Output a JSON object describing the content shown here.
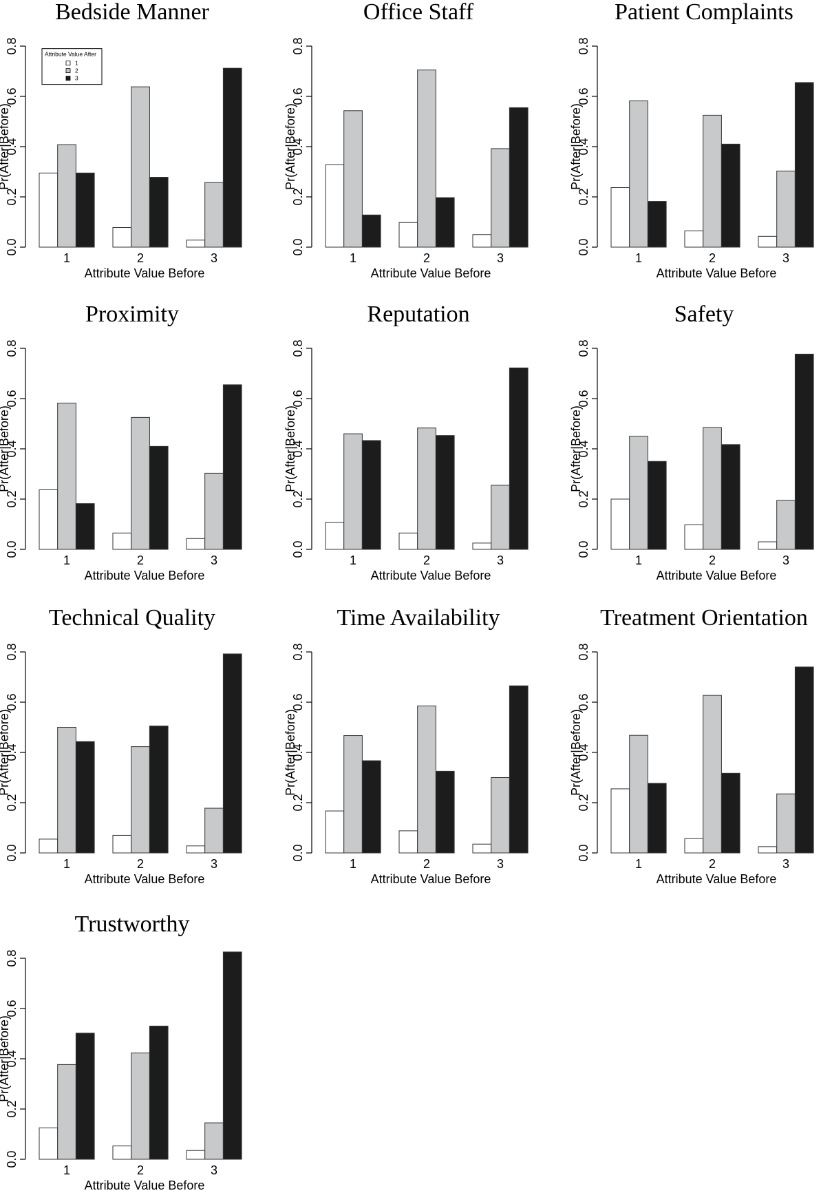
{
  "x_label": "Attribute Value Before",
  "y_label": "Pr(After|Before)",
  "legend": {
    "title": "Attribute Value After",
    "entries": [
      "1",
      "2",
      "3"
    ]
  },
  "colors": {
    "after_1": "#ffffff",
    "after_2": "#c8c9cb",
    "after_3": "#1c1c1c",
    "outline": "#333333"
  },
  "chart_data": [
    {
      "type": "bar",
      "title": "Bedside Manner",
      "xlabel": "Attribute Value Before",
      "ylabel": "Pr(After|Before)",
      "categories": [
        "1",
        "2",
        "3"
      ],
      "ylim": [
        0,
        0.8
      ],
      "yticks": [
        "0.0",
        "0.2",
        "0.4",
        "0.6",
        "0.8"
      ],
      "legend": "top-left",
      "series": [
        {
          "name": "1",
          "values": [
            0.295,
            0.078,
            0.028
          ]
        },
        {
          "name": "2",
          "values": [
            0.408,
            0.638,
            0.257
          ]
        },
        {
          "name": "3",
          "values": [
            0.295,
            0.278,
            0.712
          ]
        }
      ]
    },
    {
      "type": "bar",
      "title": "Office Staff",
      "xlabel": "Attribute Value Before",
      "ylabel": "Pr(After|Before)",
      "categories": [
        "1",
        "2",
        "3"
      ],
      "ylim": [
        0,
        0.8
      ],
      "yticks": [
        "0.0",
        "0.2",
        "0.4",
        "0.6",
        "0.8"
      ],
      "series": [
        {
          "name": "1",
          "values": [
            0.328,
            0.098,
            0.05
          ]
        },
        {
          "name": "2",
          "values": [
            0.543,
            0.705,
            0.392
          ]
        },
        {
          "name": "3",
          "values": [
            0.128,
            0.197,
            0.555
          ]
        }
      ]
    },
    {
      "type": "bar",
      "title": "Patient Complaints",
      "xlabel": "Attribute Value Before",
      "ylabel": "Pr(After|Before)",
      "categories": [
        "1",
        "2",
        "3"
      ],
      "ylim": [
        0,
        0.8
      ],
      "yticks": [
        "0.0",
        "0.2",
        "0.4",
        "0.6",
        "0.8"
      ],
      "series": [
        {
          "name": "1",
          "values": [
            0.237,
            0.065,
            0.043
          ]
        },
        {
          "name": "2",
          "values": [
            0.582,
            0.525,
            0.303
          ]
        },
        {
          "name": "3",
          "values": [
            0.182,
            0.41,
            0.655
          ]
        }
      ]
    },
    {
      "type": "bar",
      "title": "Proximity",
      "xlabel": "Attribute Value Before",
      "ylabel": "Pr(After|Before)",
      "categories": [
        "1",
        "2",
        "3"
      ],
      "ylim": [
        0,
        0.8
      ],
      "yticks": [
        "0.0",
        "0.2",
        "0.4",
        "0.6",
        "0.8"
      ],
      "series": [
        {
          "name": "1",
          "values": [
            0.237,
            0.065,
            0.043
          ]
        },
        {
          "name": "2",
          "values": [
            0.582,
            0.525,
            0.303
          ]
        },
        {
          "name": "3",
          "values": [
            0.182,
            0.41,
            0.655
          ]
        }
      ]
    },
    {
      "type": "bar",
      "title": "Reputation",
      "xlabel": "Attribute Value Before",
      "ylabel": "Pr(After|Before)",
      "categories": [
        "1",
        "2",
        "3"
      ],
      "ylim": [
        0,
        0.8
      ],
      "yticks": [
        "0.0",
        "0.2",
        "0.4",
        "0.6",
        "0.8"
      ],
      "series": [
        {
          "name": "1",
          "values": [
            0.108,
            0.065,
            0.025
          ]
        },
        {
          "name": "2",
          "values": [
            0.46,
            0.483,
            0.255
          ]
        },
        {
          "name": "3",
          "values": [
            0.433,
            0.453,
            0.722
          ]
        }
      ]
    },
    {
      "type": "bar",
      "title": "Safety",
      "xlabel": "Attribute Value Before",
      "ylabel": "Pr(After|Before)",
      "categories": [
        "1",
        "2",
        "3"
      ],
      "ylim": [
        0,
        0.8
      ],
      "yticks": [
        "0.0",
        "0.2",
        "0.4",
        "0.6",
        "0.8"
      ],
      "series": [
        {
          "name": "1",
          "values": [
            0.2,
            0.098,
            0.03
          ]
        },
        {
          "name": "2",
          "values": [
            0.45,
            0.485,
            0.195
          ]
        },
        {
          "name": "3",
          "values": [
            0.35,
            0.417,
            0.777
          ]
        }
      ]
    },
    {
      "type": "bar",
      "title": "Technical Quality",
      "xlabel": "Attribute Value Before",
      "ylabel": "Pr(After|Before)",
      "categories": [
        "1",
        "2",
        "3"
      ],
      "ylim": [
        0,
        0.8
      ],
      "yticks": [
        "0.0",
        "0.2",
        "0.4",
        "0.6",
        "0.8"
      ],
      "series": [
        {
          "name": "1",
          "values": [
            0.055,
            0.07,
            0.028
          ]
        },
        {
          "name": "2",
          "values": [
            0.5,
            0.423,
            0.178
          ]
        },
        {
          "name": "3",
          "values": [
            0.443,
            0.505,
            0.792
          ]
        }
      ]
    },
    {
      "type": "bar",
      "title": "Time Availability",
      "xlabel": "Attribute Value Before",
      "ylabel": "Pr(After|Before)",
      "categories": [
        "1",
        "2",
        "3"
      ],
      "ylim": [
        0,
        0.8
      ],
      "yticks": [
        "0.0",
        "0.2",
        "0.4",
        "0.6",
        "0.8"
      ],
      "series": [
        {
          "name": "1",
          "values": [
            0.167,
            0.088,
            0.035
          ]
        },
        {
          "name": "2",
          "values": [
            0.467,
            0.585,
            0.3
          ]
        },
        {
          "name": "3",
          "values": [
            0.367,
            0.325,
            0.665
          ]
        }
      ]
    },
    {
      "type": "bar",
      "title": "Treatment Orientation",
      "xlabel": "Attribute Value Before",
      "ylabel": "Pr(After|Before)",
      "categories": [
        "1",
        "2",
        "3"
      ],
      "ylim": [
        0,
        0.8
      ],
      "yticks": [
        "0.0",
        "0.2",
        "0.4",
        "0.6",
        "0.8"
      ],
      "series": [
        {
          "name": "1",
          "values": [
            0.255,
            0.057,
            0.025
          ]
        },
        {
          "name": "2",
          "values": [
            0.468,
            0.627,
            0.235
          ]
        },
        {
          "name": "3",
          "values": [
            0.277,
            0.317,
            0.74
          ]
        }
      ]
    },
    {
      "type": "bar",
      "title": "Trustworthy",
      "xlabel": "Attribute Value Before",
      "ylabel": "Pr(After|Before)",
      "categories": [
        "1",
        "2",
        "3"
      ],
      "ylim": [
        0,
        0.8
      ],
      "yticks": [
        "0.0",
        "0.2",
        "0.4",
        "0.6",
        "0.8"
      ],
      "series": [
        {
          "name": "1",
          "values": [
            0.125,
            0.053,
            0.035
          ]
        },
        {
          "name": "2",
          "values": [
            0.377,
            0.423,
            0.145
          ]
        },
        {
          "name": "3",
          "values": [
            0.502,
            0.53,
            0.825
          ]
        }
      ]
    }
  ]
}
